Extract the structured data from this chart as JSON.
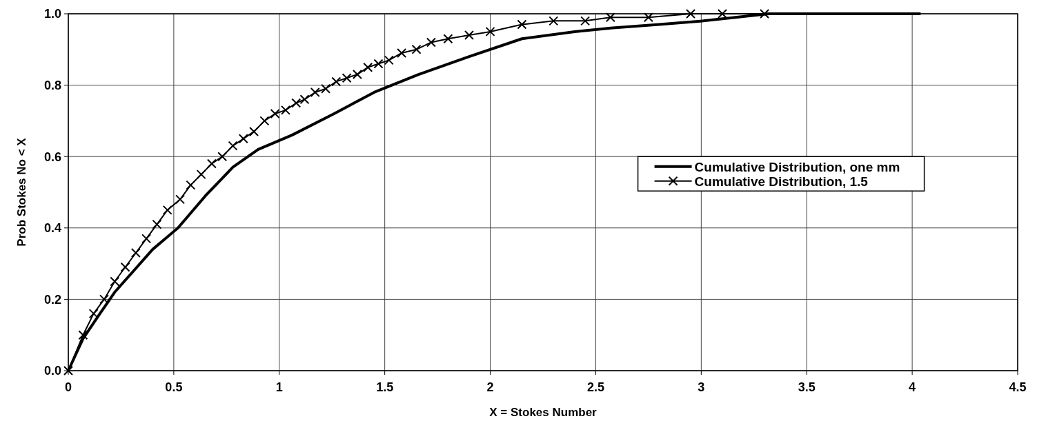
{
  "chart_data": {
    "type": "line",
    "xlabel": "X = Stokes Number",
    "ylabel": "Prob Stokes No < X",
    "xlim": [
      0,
      4.5
    ],
    "xticks": [
      0,
      0.5,
      1,
      1.5,
      2,
      2.5,
      3,
      3.5,
      4,
      4.5
    ],
    "ylim": [
      0,
      1
    ],
    "yticks": [
      {
        "value": 0,
        "label": "0.0"
      },
      0.2,
      0.4,
      0.6,
      0.8,
      {
        "value": 1,
        "label": "1.0"
      }
    ],
    "grid": true,
    "legend": "right",
    "line_style": "solid",
    "series": [
      {
        "name": "Cumulative Distribution, one mm",
        "color": "#000000",
        "marker": "none",
        "x": [
          0,
          0.07,
          0.15,
          0.22,
          0.31,
          0.4,
          0.52,
          0.65,
          0.78,
          0.9,
          1.06,
          1.26,
          1.45,
          1.66,
          1.9,
          2.15,
          2.4,
          2.57,
          2.8,
          3.01,
          3.32,
          3.6,
          4.04
        ],
        "values": [
          0,
          0.09,
          0.16,
          0.22,
          0.28,
          0.34,
          0.4,
          0.49,
          0.57,
          0.62,
          0.66,
          0.72,
          0.78,
          0.83,
          0.88,
          0.93,
          0.95,
          0.96,
          0.97,
          0.98,
          1.0,
          1.0,
          1.0
        ]
      },
      {
        "name": "Cumulative Distribution, 1.5",
        "color": "#000000",
        "marker": "cross",
        "x": [
          0,
          0.07,
          0.12,
          0.17,
          0.22,
          0.27,
          0.32,
          0.37,
          0.42,
          0.47,
          0.53,
          0.58,
          0.63,
          0.68,
          0.73,
          0.78,
          0.83,
          0.88,
          0.93,
          0.98,
          1.03,
          1.08,
          1.12,
          1.17,
          1.22,
          1.27,
          1.32,
          1.37,
          1.42,
          1.47,
          1.52,
          1.58,
          1.65,
          1.72,
          1.8,
          1.9,
          2.0,
          2.15,
          2.3,
          2.45,
          2.57,
          2.75,
          2.95,
          3.1,
          3.3
        ],
        "values": [
          0,
          0.1,
          0.16,
          0.2,
          0.25,
          0.29,
          0.33,
          0.37,
          0.41,
          0.45,
          0.48,
          0.52,
          0.55,
          0.58,
          0.6,
          0.63,
          0.65,
          0.67,
          0.7,
          0.72,
          0.73,
          0.75,
          0.76,
          0.78,
          0.79,
          0.81,
          0.82,
          0.83,
          0.85,
          0.86,
          0.87,
          0.89,
          0.9,
          0.92,
          0.93,
          0.94,
          0.95,
          0.97,
          0.98,
          0.98,
          0.99,
          0.99,
          1.0,
          1.0,
          1.0
        ]
      }
    ]
  }
}
